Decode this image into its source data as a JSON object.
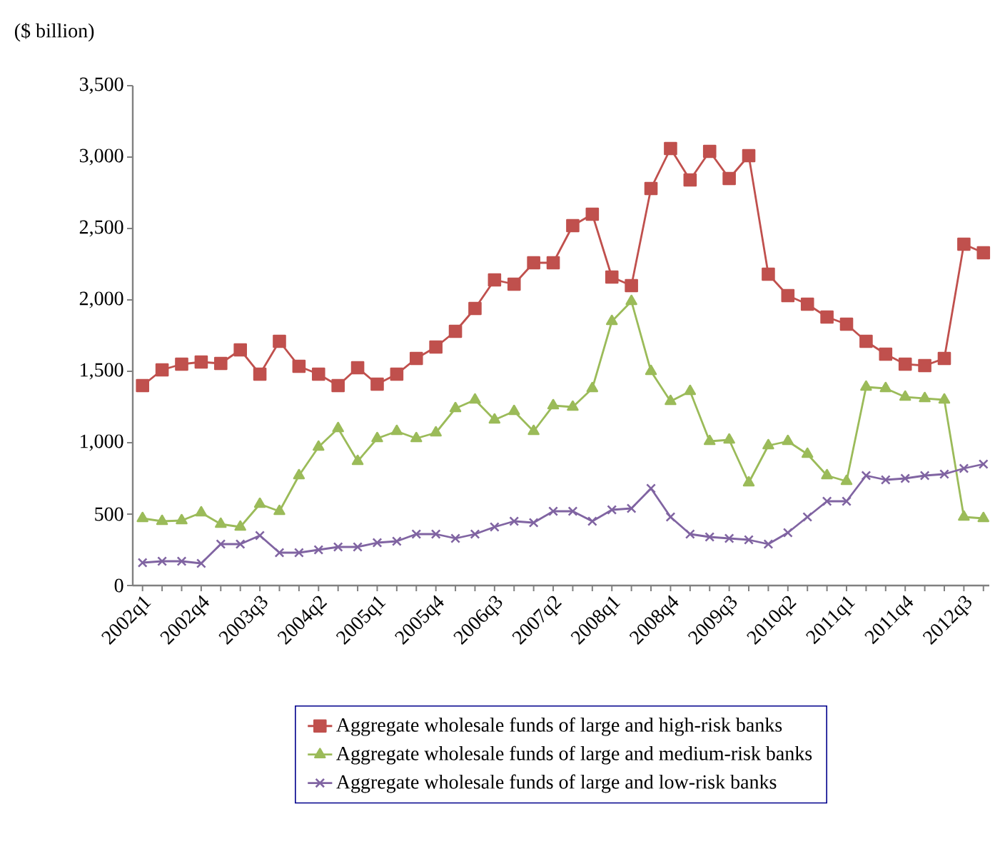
{
  "chart_data": {
    "type": "line",
    "ylabel": "($ billion)",
    "categories": [
      "2002q1",
      null,
      null,
      "2002q4",
      null,
      null,
      "2003q3",
      null,
      null,
      "2004q2",
      null,
      null,
      "2005q1",
      null,
      null,
      "2005q4",
      null,
      null,
      "2006q3",
      null,
      null,
      "2007q2",
      null,
      null,
      "2008q1",
      null,
      null,
      "2008q4",
      null,
      null,
      "2009q3",
      null,
      null,
      "2010q2",
      null,
      null,
      "2011q1",
      null,
      null,
      "2011q4",
      null,
      null,
      "2012q3",
      null
    ],
    "ylim": [
      0,
      3500
    ],
    "yticks": [
      0,
      500,
      {
        "value": 1000,
        "label": "1,000"
      },
      {
        "value": 1500,
        "label": "1,500"
      },
      {
        "value": 2000,
        "label": "2,000"
      },
      {
        "value": 2500,
        "label": "2,500"
      },
      {
        "value": 3000,
        "label": "3,000"
      },
      {
        "value": 3500,
        "label": "3,500"
      }
    ],
    "grid": false,
    "legend": "bottom",
    "series": [
      {
        "name": "Aggregate wholesale funds of large and high-risk banks",
        "color": "#c0504d",
        "marker": "square",
        "values": [
          1400,
          1510,
          1550,
          1565,
          1555,
          1650,
          1480,
          1710,
          1535,
          1480,
          1400,
          1525,
          1410,
          1480,
          1590,
          1670,
          1780,
          1940,
          2140,
          2110,
          2260,
          2260,
          2520,
          2600,
          2160,
          2100,
          2780,
          3060,
          2840,
          3040,
          2850,
          3010,
          2180,
          2030,
          1970,
          1880,
          1830,
          1710,
          1620,
          1550,
          1540,
          1590,
          2390,
          2330
        ]
      },
      {
        "name": "Aggregate wholesale funds of large and medium-risk banks",
        "color": "#9bbb59",
        "marker": "triangle",
        "values": [
          470,
          450,
          455,
          510,
          430,
          410,
          570,
          520,
          770,
          970,
          1100,
          870,
          1030,
          1080,
          1030,
          1070,
          1240,
          1300,
          1160,
          1220,
          1080,
          1260,
          1250,
          1380,
          1850,
          1990,
          1500,
          1290,
          1360,
          1010,
          1020,
          720,
          980,
          1010,
          920,
          770,
          730,
          1390,
          1380,
          1320,
          1310,
          1300,
          480,
          470
        ]
      },
      {
        "name": "Aggregate wholesale funds of large and low-risk banks",
        "color": "#8064a2",
        "marker": "cross",
        "values": [
          160,
          170,
          170,
          155,
          290,
          290,
          350,
          230,
          230,
          250,
          270,
          270,
          300,
          310,
          360,
          360,
          330,
          360,
          410,
          450,
          440,
          520,
          520,
          450,
          530,
          540,
          680,
          480,
          360,
          340,
          330,
          320,
          290,
          370,
          480,
          590,
          590,
          770,
          740,
          750,
          770,
          780,
          820,
          850
        ]
      }
    ]
  }
}
